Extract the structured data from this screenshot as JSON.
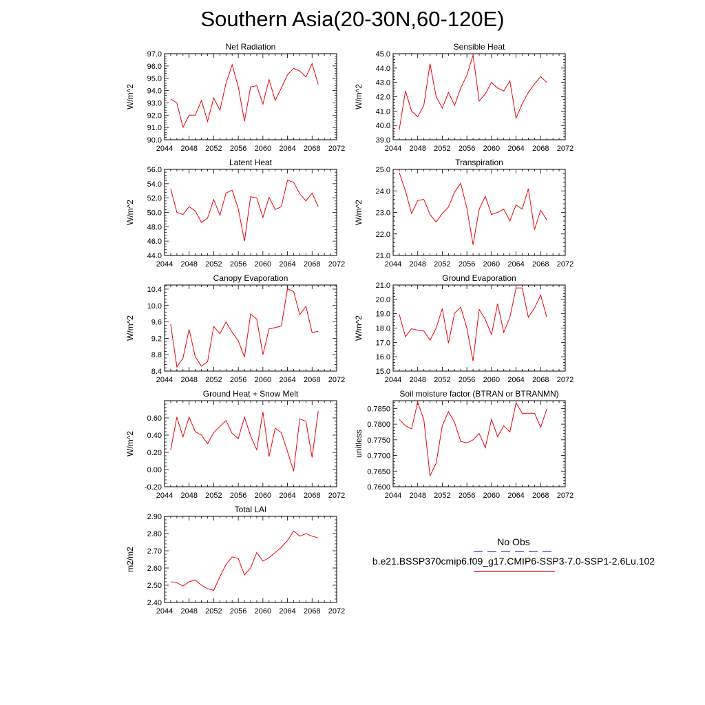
{
  "figure": {
    "title": "Southern Asia(20-30N,60-120E)"
  },
  "legend": {
    "obs_label": "No Obs",
    "model_label": "b.e21.BSSP370cmip6.f09_g17.CMIP6-SSP3-7.0-SSP1-2.6Lu.102",
    "obs_color": "#3a3ab0",
    "model_color": "#e8000b"
  },
  "chart_data": [
    {
      "type": "line",
      "title": "Net Radiation",
      "ylabel": "W/m^2",
      "xlim": [
        2044,
        2072
      ],
      "xticks": [
        "2044",
        "2048",
        "2052",
        "2056",
        "2060",
        "2064",
        "2068",
        "2072"
      ],
      "ylim": [
        90.0,
        97.0
      ],
      "yticks": [
        "90.0",
        "91.0",
        "92.0",
        "93.0",
        "94.0",
        "95.0",
        "96.0",
        "97.0"
      ],
      "x": [
        2045,
        2046,
        2047,
        2048,
        2049,
        2050,
        2051,
        2052,
        2053,
        2054,
        2055,
        2056,
        2057,
        2058,
        2059,
        2060,
        2061,
        2062,
        2063,
        2064,
        2065,
        2066,
        2067,
        2068,
        2069
      ],
      "series": [
        {
          "values": [
            93.3,
            93.0,
            91.0,
            92.0,
            92.0,
            93.2,
            91.5,
            93.4,
            92.4,
            94.6,
            96.1,
            94.3,
            91.5,
            94.3,
            94.4,
            92.9,
            94.9,
            93.2,
            94.2,
            95.3,
            95.8,
            95.6,
            95.1,
            96.2,
            94.5
          ]
        }
      ]
    },
    {
      "type": "line",
      "title": "Sensible Heat",
      "ylabel": "W/m^2",
      "xlim": [
        2044,
        2072
      ],
      "xticks": [
        "2044",
        "2048",
        "2052",
        "2056",
        "2060",
        "2064",
        "2068",
        "2072"
      ],
      "ylim": [
        39.0,
        45.0
      ],
      "yticks": [
        "39.0",
        "40.0",
        "41.0",
        "42.0",
        "43.0",
        "44.0",
        "45.0"
      ],
      "x": [
        2045,
        2046,
        2047,
        2048,
        2049,
        2050,
        2051,
        2052,
        2053,
        2054,
        2055,
        2056,
        2057,
        2058,
        2059,
        2060,
        2061,
        2062,
        2063,
        2064,
        2065,
        2066,
        2067,
        2068,
        2069
      ],
      "series": [
        {
          "values": [
            39.7,
            42.4,
            41.0,
            40.6,
            41.4,
            44.3,
            42.0,
            41.2,
            42.3,
            41.4,
            42.6,
            43.5,
            44.9,
            41.7,
            42.2,
            43.0,
            42.6,
            42.4,
            43.1,
            40.5,
            41.5,
            42.3,
            42.9,
            43.4,
            43.0
          ]
        }
      ]
    },
    {
      "type": "line",
      "title": "Latent Heat",
      "ylabel": "W/m^2",
      "xlim": [
        2044,
        2072
      ],
      "xticks": [
        "2044",
        "2048",
        "2052",
        "2056",
        "2060",
        "2064",
        "2068",
        "2072"
      ],
      "ylim": [
        44.0,
        56.0
      ],
      "yticks": [
        "44.0",
        "46.0",
        "48.0",
        "50.0",
        "52.0",
        "54.0",
        "56.0"
      ],
      "x": [
        2045,
        2046,
        2047,
        2048,
        2049,
        2050,
        2051,
        2052,
        2053,
        2054,
        2055,
        2056,
        2057,
        2058,
        2059,
        2060,
        2061,
        2062,
        2063,
        2064,
        2065,
        2066,
        2067,
        2068,
        2069
      ],
      "series": [
        {
          "values": [
            53.3,
            50.0,
            49.7,
            50.8,
            50.2,
            48.6,
            49.2,
            51.8,
            49.6,
            52.7,
            53.1,
            50.5,
            46.0,
            52.2,
            52.0,
            49.3,
            52.1,
            50.4,
            50.8,
            54.5,
            54.2,
            52.6,
            51.6,
            52.7,
            50.8
          ]
        }
      ]
    },
    {
      "type": "line",
      "title": "Transpiration",
      "ylabel": "W/m^2",
      "xlim": [
        2044,
        2072
      ],
      "xticks": [
        "2044",
        "2048",
        "2052",
        "2056",
        "2060",
        "2064",
        "2068",
        "2072"
      ],
      "ylim": [
        21.0,
        25.0
      ],
      "yticks": [
        "21.0",
        "22.0",
        "23.0",
        "24.0",
        "25.0"
      ],
      "x": [
        2045,
        2046,
        2047,
        2048,
        2049,
        2050,
        2051,
        2052,
        2053,
        2054,
        2055,
        2056,
        2057,
        2058,
        2059,
        2060,
        2061,
        2062,
        2063,
        2064,
        2065,
        2066,
        2067,
        2068,
        2069
      ],
      "series": [
        {
          "values": [
            24.85,
            24.0,
            22.95,
            23.55,
            23.6,
            22.9,
            22.55,
            22.95,
            23.25,
            23.95,
            24.35,
            23.2,
            21.5,
            23.15,
            23.75,
            22.9,
            23.0,
            23.15,
            22.6,
            23.35,
            23.15,
            24.1,
            22.2,
            23.1,
            22.65
          ]
        }
      ]
    },
    {
      "type": "line",
      "title": "Canopy Evaporation",
      "ylabel": "W/m^2",
      "xlim": [
        2044,
        2072
      ],
      "xticks": [
        "2044",
        "2048",
        "2052",
        "2056",
        "2060",
        "2064",
        "2068",
        "2072"
      ],
      "ylim": [
        8.4,
        10.5
      ],
      "yticks": [
        "8.4",
        "8.8",
        "9.2",
        "9.6",
        "10.0",
        "10.4"
      ],
      "ytick_values": [
        8.4,
        8.8,
        9.2,
        9.6,
        10.0,
        10.4
      ],
      "x": [
        2045,
        2046,
        2047,
        2048,
        2049,
        2050,
        2051,
        2052,
        2053,
        2054,
        2055,
        2056,
        2057,
        2058,
        2059,
        2060,
        2061,
        2062,
        2063,
        2064,
        2065,
        2066,
        2067,
        2068,
        2069
      ],
      "series": [
        {
          "values": [
            9.54,
            8.5,
            8.72,
            9.42,
            8.75,
            8.52,
            8.63,
            9.49,
            9.31,
            9.6,
            9.35,
            9.14,
            8.74,
            9.79,
            9.67,
            8.8,
            9.43,
            9.46,
            9.5,
            10.41,
            10.34,
            9.78,
            9.98,
            9.34,
            9.37
          ]
        }
      ]
    },
    {
      "type": "line",
      "title": "Ground Evaporation",
      "ylabel": "W/m^2",
      "xlim": [
        2044,
        2072
      ],
      "xticks": [
        "2044",
        "2048",
        "2052",
        "2056",
        "2060",
        "2064",
        "2068",
        "2072"
      ],
      "ylim": [
        15.0,
        21.0
      ],
      "yticks": [
        "15.0",
        "16.0",
        "17.0",
        "18.0",
        "19.0",
        "20.0",
        "21.0"
      ],
      "x": [
        2045,
        2046,
        2047,
        2048,
        2049,
        2050,
        2051,
        2052,
        2053,
        2054,
        2055,
        2056,
        2057,
        2058,
        2059,
        2060,
        2061,
        2062,
        2063,
        2064,
        2065,
        2066,
        2067,
        2068,
        2069
      ],
      "series": [
        {
          "values": [
            18.95,
            17.4,
            17.95,
            17.85,
            17.8,
            17.15,
            18.0,
            19.35,
            16.95,
            19.05,
            19.45,
            18.0,
            15.7,
            19.3,
            18.6,
            17.55,
            19.7,
            17.7,
            18.75,
            20.8,
            20.8,
            18.75,
            19.4,
            20.3,
            18.75
          ]
        }
      ]
    },
    {
      "type": "line",
      "title": "Ground Heat + Snow Melt",
      "ylabel": "W/m^2",
      "xlim": [
        2044,
        2072
      ],
      "xticks": [
        "2044",
        "2048",
        "2052",
        "2056",
        "2060",
        "2064",
        "2068",
        "2072"
      ],
      "ylim": [
        -0.2,
        0.8
      ],
      "yticks": [
        "-0.20",
        "0.00",
        "0.20",
        "0.40",
        "0.60"
      ],
      "ytick_values": [
        -0.2,
        0.0,
        0.2,
        0.4,
        0.6
      ],
      "x": [
        2045,
        2046,
        2047,
        2048,
        2049,
        2050,
        2051,
        2052,
        2053,
        2054,
        2055,
        2056,
        2057,
        2058,
        2059,
        2060,
        2061,
        2062,
        2063,
        2064,
        2065,
        2066,
        2067,
        2068,
        2069
      ],
      "series": [
        {
          "values": [
            0.23,
            0.61,
            0.38,
            0.61,
            0.44,
            0.4,
            0.3,
            0.43,
            0.5,
            0.57,
            0.42,
            0.36,
            0.61,
            0.39,
            0.23,
            0.67,
            0.15,
            0.48,
            0.43,
            0.21,
            -0.02,
            0.59,
            0.56,
            0.14,
            0.68
          ]
        }
      ]
    },
    {
      "type": "line",
      "title": "Soil moisture factor (BTRAN or BTRANMN)",
      "ylabel": "unitless",
      "xlim": [
        2044,
        2072
      ],
      "xticks": [
        "2044",
        "2048",
        "2052",
        "2056",
        "2060",
        "2064",
        "2068",
        "2072"
      ],
      "ylim": [
        0.76,
        0.7875
      ],
      "yticks": [
        "0.7600",
        "0.7650",
        "0.7700",
        "0.7750",
        "0.7800",
        "0.7850"
      ],
      "ytick_values": [
        0.76,
        0.765,
        0.77,
        0.775,
        0.78,
        0.785
      ],
      "x": [
        2045,
        2046,
        2047,
        2048,
        2049,
        2050,
        2051,
        2052,
        2053,
        2054,
        2055,
        2056,
        2057,
        2058,
        2059,
        2060,
        2061,
        2062,
        2063,
        2064,
        2065,
        2066,
        2067,
        2068,
        2069
      ],
      "series": [
        {
          "values": [
            0.7815,
            0.7795,
            0.7785,
            0.787,
            0.7815,
            0.7635,
            0.7675,
            0.7795,
            0.784,
            0.7805,
            0.7745,
            0.774,
            0.775,
            0.777,
            0.7725,
            0.7815,
            0.776,
            0.7795,
            0.7775,
            0.7868,
            0.7835,
            0.7835,
            0.7835,
            0.779,
            0.7848
          ]
        }
      ]
    },
    {
      "type": "line",
      "title": "Total LAI",
      "ylabel": "m2/m2",
      "xlim": [
        2044,
        2072
      ],
      "xticks": [
        "2044",
        "2048",
        "2052",
        "2056",
        "2060",
        "2064",
        "2068",
        "2072"
      ],
      "ylim": [
        2.4,
        2.9
      ],
      "yticks": [
        "2.40",
        "2.50",
        "2.60",
        "2.70",
        "2.80",
        "2.90"
      ],
      "x": [
        2045,
        2046,
        2047,
        2048,
        2049,
        2050,
        2051,
        2052,
        2053,
        2054,
        2055,
        2056,
        2057,
        2058,
        2059,
        2060,
        2061,
        2062,
        2063,
        2064,
        2065,
        2066,
        2067,
        2068,
        2069
      ],
      "series": [
        {
          "values": [
            2.52,
            2.515,
            2.495,
            2.52,
            2.53,
            2.5,
            2.48,
            2.47,
            2.55,
            2.62,
            2.665,
            2.655,
            2.56,
            2.6,
            2.69,
            2.64,
            2.66,
            2.69,
            2.72,
            2.76,
            2.815,
            2.785,
            2.8,
            2.785,
            2.775
          ]
        }
      ]
    }
  ]
}
